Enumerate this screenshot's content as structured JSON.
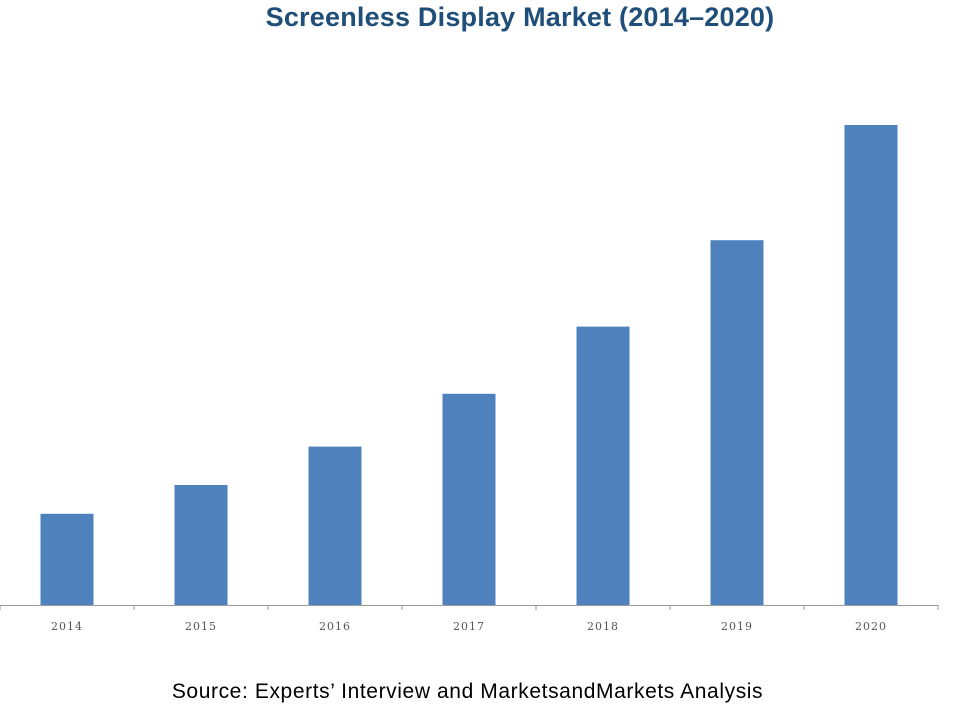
{
  "chart_data": {
    "type": "bar",
    "title": "Screenless Display Market (2014–2020)",
    "source": "Source: Experts’ Interview and MarketsandMarkets Analysis",
    "categories": [
      "2014",
      "2015",
      "2016",
      "2017",
      "2018",
      "2019",
      "2020"
    ],
    "values": [
      19,
      25,
      33,
      44,
      58,
      76,
      100
    ],
    "xlabel": "",
    "ylabel": "",
    "ylim": [
      0,
      100
    ],
    "grid": false,
    "legend": "none",
    "bar_color": "#4f81bd",
    "axis_color": "#999999",
    "title_color": "#1f4e79"
  }
}
